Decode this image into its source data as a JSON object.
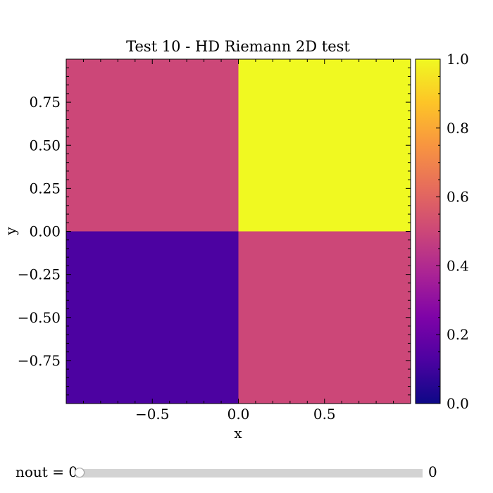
{
  "chart_data": {
    "type": "heatmap",
    "title": "Test 10 - HD Riemann 2D test",
    "xlabel": "x",
    "ylabel": "y",
    "xlim": [
      -1.0,
      1.0
    ],
    "ylim": [
      -1.0,
      1.0
    ],
    "x_ticks": [
      -0.5,
      0.0,
      0.5
    ],
    "x_tick_labels": [
      "−0.5",
      "0.0",
      "0.5"
    ],
    "y_ticks": [
      -0.75,
      -0.5,
      -0.25,
      0.0,
      0.25,
      0.5,
      0.75
    ],
    "y_tick_labels": [
      "−0.75",
      "−0.50",
      "−0.25",
      "0.00",
      "0.25",
      "0.50",
      "0.75"
    ],
    "colormap": "plasma",
    "colorbar": {
      "range": [
        0.0,
        1.0
      ],
      "ticks": [
        0.0,
        0.2,
        0.4,
        0.6,
        0.8,
        1.0
      ],
      "tick_labels": [
        "0.0",
        "0.2",
        "0.4",
        "0.6",
        "0.8",
        "1.0"
      ]
    },
    "regions": [
      {
        "x": [
          -1.0,
          0.0
        ],
        "y": [
          0.0,
          1.0
        ],
        "value": 0.5
      },
      {
        "x": [
          0.0,
          1.0
        ],
        "y": [
          0.0,
          1.0
        ],
        "value": 1.0
      },
      {
        "x": [
          -1.0,
          0.0
        ],
        "y": [
          -1.0,
          0.0
        ],
        "value": 0.125
      },
      {
        "x": [
          0.0,
          1.0
        ],
        "y": [
          -1.0,
          0.0
        ],
        "value": 0.5
      }
    ]
  },
  "slider": {
    "label": "nout = 0",
    "value_text": "0",
    "position": 0.0
  }
}
